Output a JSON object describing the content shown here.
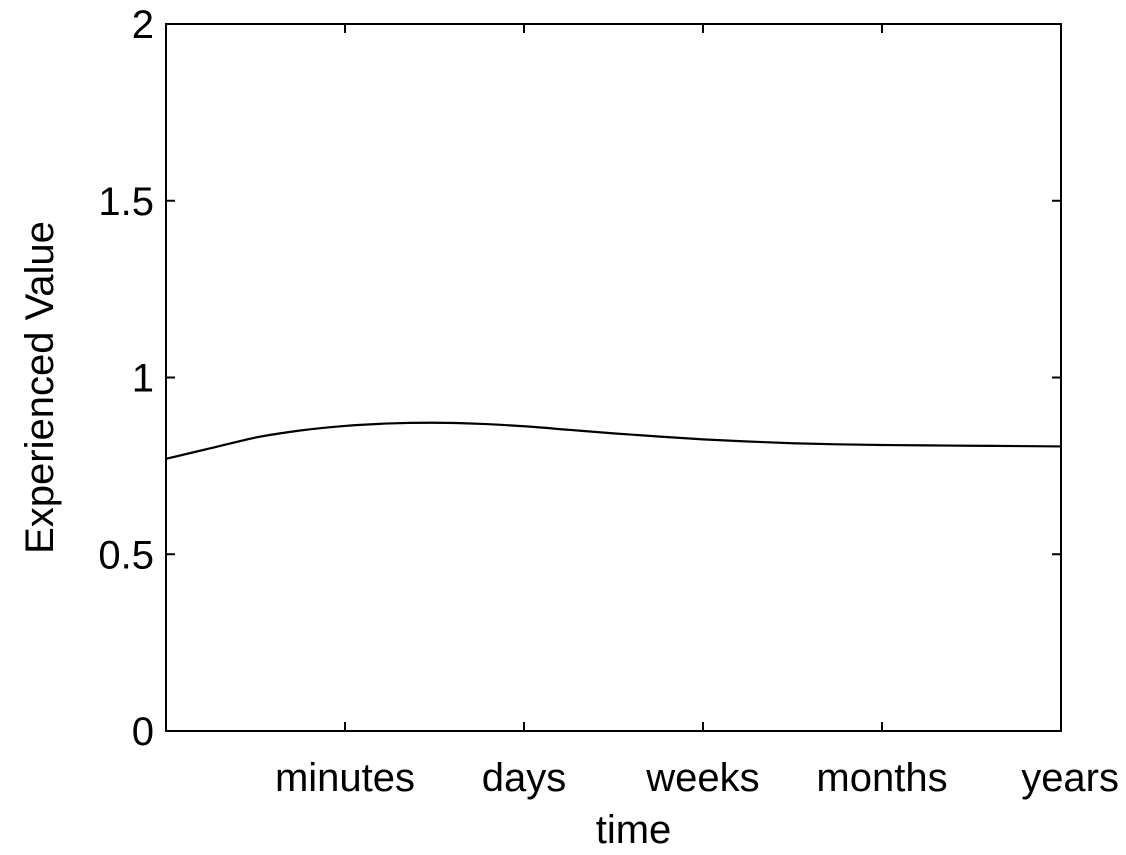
{
  "chart_data": {
    "type": "line",
    "xlabel": "time",
    "ylabel": "Experienced Value",
    "xlim": [
      0,
      5
    ],
    "ylim": [
      0,
      2
    ],
    "x_ticks": [
      {
        "value": 1,
        "label": "minutes"
      },
      {
        "value": 2,
        "label": "days"
      },
      {
        "value": 3,
        "label": "weeks"
      },
      {
        "value": 4,
        "label": "months"
      },
      {
        "value": 5,
        "label": "years"
      }
    ],
    "y_ticks": [
      {
        "value": 0,
        "label": "0"
      },
      {
        "value": 0.5,
        "label": "0.5"
      },
      {
        "value": 1,
        "label": "1"
      },
      {
        "value": 1.5,
        "label": "1.5"
      },
      {
        "value": 2,
        "label": "2"
      }
    ],
    "grid": false,
    "series": [
      {
        "color": "#000000",
        "x": [
          0,
          0.25,
          0.5,
          0.75,
          1,
          1.25,
          1.5,
          1.75,
          2,
          2.25,
          2.5,
          2.75,
          3,
          3.25,
          3.5,
          3.75,
          4,
          4.25,
          4.5,
          4.75,
          5
        ],
        "y": [
          0.77,
          0.8,
          0.83,
          0.85,
          0.863,
          0.87,
          0.872,
          0.869,
          0.862,
          0.852,
          0.842,
          0.833,
          0.825,
          0.819,
          0.814,
          0.811,
          0.809,
          0.808,
          0.807,
          0.806,
          0.805
        ]
      }
    ]
  }
}
